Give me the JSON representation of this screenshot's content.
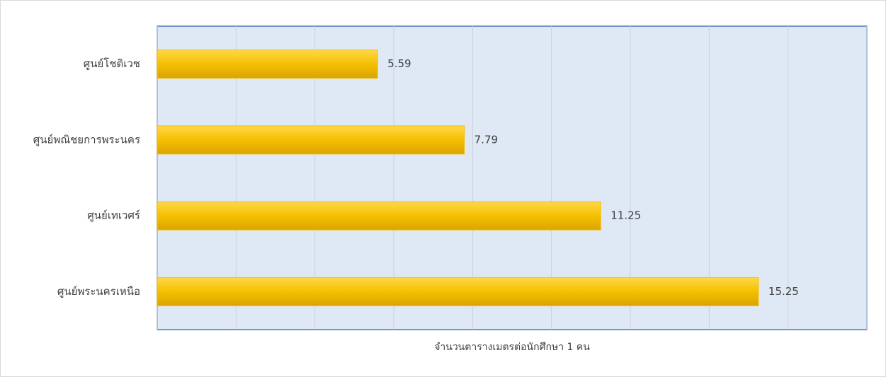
{
  "chart_data": {
    "type": "hbar",
    "categories": [
      "ศูนย์โชติเวช",
      "ศูนย์พณิชยการพระนคร",
      "ศูนย์เทเวศร์",
      "ศูนย์พระนครเหนือ"
    ],
    "values": [
      5.59,
      7.79,
      11.25,
      15.25
    ],
    "color": "#f5c000",
    "x_label": "จำนวนตารางเมตรต่อนักศึกษา 1 คน",
    "xlim": [
      0,
      18
    ],
    "xticks": [
      0,
      2,
      4,
      6,
      8,
      10,
      12,
      14,
      16,
      18
    ],
    "grid": true
  }
}
